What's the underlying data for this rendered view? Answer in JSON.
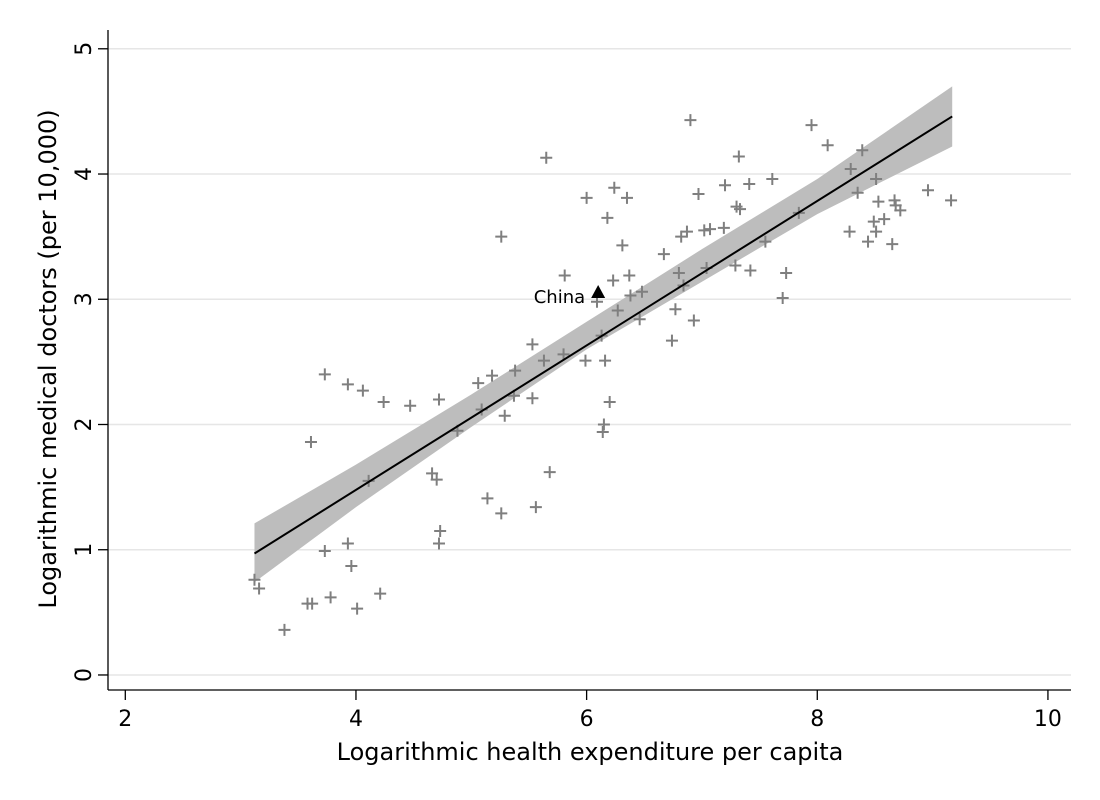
{
  "chart_data": {
    "type": "scatter",
    "xlabel": "Logarithmic health expenditure per capita",
    "ylabel": "Logarithmic medical doctors (per 10,000)",
    "xlim": [
      1.85,
      10.2
    ],
    "ylim": [
      -0.12,
      5.15
    ],
    "xticks": [
      2,
      4,
      6,
      8,
      10
    ],
    "yticks": [
      0,
      1,
      2,
      3,
      4,
      5
    ],
    "xtick_labels": [
      "2",
      "4",
      "6",
      "8",
      "10"
    ],
    "ytick_labels": [
      "0",
      "1",
      "2",
      "3",
      "4",
      "5"
    ],
    "grid": "horizontal",
    "colors": {
      "points": "#7f7f7f",
      "fit_line": "#000000",
      "ci_band": "#bdbdbd",
      "highlight": "#000000"
    },
    "points": [
      [
        3.12,
        0.76
      ],
      [
        3.16,
        0.69
      ],
      [
        3.38,
        0.36
      ],
      [
        3.58,
        0.57
      ],
      [
        3.62,
        0.57
      ],
      [
        3.61,
        1.86
      ],
      [
        3.73,
        2.4
      ],
      [
        3.73,
        0.99
      ],
      [
        3.78,
        0.62
      ],
      [
        3.93,
        2.32
      ],
      [
        3.93,
        1.05
      ],
      [
        3.96,
        0.87
      ],
      [
        4.01,
        0.53
      ],
      [
        4.06,
        2.27
      ],
      [
        4.11,
        1.55
      ],
      [
        4.21,
        0.65
      ],
      [
        4.24,
        2.18
      ],
      [
        4.47,
        2.15
      ],
      [
        4.66,
        1.61
      ],
      [
        4.7,
        1.56
      ],
      [
        4.72,
        2.2
      ],
      [
        4.72,
        1.05
      ],
      [
        4.73,
        1.15
      ],
      [
        4.88,
        1.95
      ],
      [
        5.06,
        2.33
      ],
      [
        5.09,
        2.12
      ],
      [
        5.14,
        1.41
      ],
      [
        5.18,
        2.39
      ],
      [
        5.26,
        1.29
      ],
      [
        5.26,
        3.5
      ],
      [
        5.29,
        2.07
      ],
      [
        5.37,
        2.23
      ],
      [
        5.38,
        2.43
      ],
      [
        5.53,
        2.64
      ],
      [
        5.53,
        2.21
      ],
      [
        5.56,
        1.34
      ],
      [
        5.63,
        2.51
      ],
      [
        5.65,
        4.13
      ],
      [
        5.68,
        1.62
      ],
      [
        5.8,
        2.56
      ],
      [
        5.81,
        3.19
      ],
      [
        5.99,
        2.51
      ],
      [
        6.0,
        3.81
      ],
      [
        6.09,
        2.98
      ],
      [
        6.13,
        2.71
      ],
      [
        6.14,
        1.94
      ],
      [
        6.15,
        2.0
      ],
      [
        6.16,
        2.51
      ],
      [
        6.18,
        3.65
      ],
      [
        6.2,
        2.18
      ],
      [
        6.23,
        3.15
      ],
      [
        6.24,
        3.89
      ],
      [
        6.27,
        2.91
      ],
      [
        6.31,
        3.43
      ],
      [
        6.35,
        3.81
      ],
      [
        6.37,
        3.19
      ],
      [
        6.38,
        3.03
      ],
      [
        6.46,
        2.84
      ],
      [
        6.48,
        3.06
      ],
      [
        6.67,
        3.36
      ],
      [
        6.74,
        2.67
      ],
      [
        6.77,
        2.92
      ],
      [
        6.8,
        3.21
      ],
      [
        6.82,
        3.5
      ],
      [
        6.84,
        3.11
      ],
      [
        6.87,
        3.54
      ],
      [
        6.9,
        4.43
      ],
      [
        6.93,
        2.83
      ],
      [
        6.97,
        3.84
      ],
      [
        7.02,
        3.55
      ],
      [
        7.04,
        3.25
      ],
      [
        7.07,
        3.56
      ],
      [
        7.19,
        3.57
      ],
      [
        7.2,
        3.91
      ],
      [
        7.29,
        3.27
      ],
      [
        7.3,
        3.74
      ],
      [
        7.32,
        4.14
      ],
      [
        7.33,
        3.72
      ],
      [
        7.41,
        3.92
      ],
      [
        7.42,
        3.23
      ],
      [
        7.55,
        3.46
      ],
      [
        7.61,
        3.96
      ],
      [
        7.7,
        3.01
      ],
      [
        7.73,
        3.21
      ],
      [
        7.84,
        3.69
      ],
      [
        7.95,
        4.39
      ],
      [
        8.09,
        4.23
      ],
      [
        8.28,
        3.54
      ],
      [
        8.29,
        4.04
      ],
      [
        8.35,
        3.85
      ],
      [
        8.39,
        4.19
      ],
      [
        8.44,
        3.46
      ],
      [
        8.49,
        3.62
      ],
      [
        8.51,
        3.96
      ],
      [
        8.51,
        3.54
      ],
      [
        8.53,
        3.78
      ],
      [
        8.58,
        3.64
      ],
      [
        8.65,
        3.44
      ],
      [
        8.67,
        3.79
      ],
      [
        8.68,
        3.75
      ],
      [
        8.72,
        3.71
      ],
      [
        8.96,
        3.87
      ],
      [
        9.16,
        3.79
      ]
    ],
    "fit_line": {
      "x": [
        3.12,
        9.17
      ],
      "y": [
        0.97,
        4.46
      ]
    },
    "ci_band": {
      "x": [
        3.12,
        4.0,
        5.0,
        6.0,
        7.0,
        8.0,
        9.17
      ],
      "lower": [
        0.74,
        1.34,
        1.98,
        2.6,
        3.14,
        3.68,
        4.22
      ],
      "upper": [
        1.21,
        1.68,
        2.24,
        2.82,
        3.4,
        3.96,
        4.7
      ]
    },
    "highlight": {
      "label": "China",
      "x": 6.1,
      "y": 3.05
    }
  }
}
